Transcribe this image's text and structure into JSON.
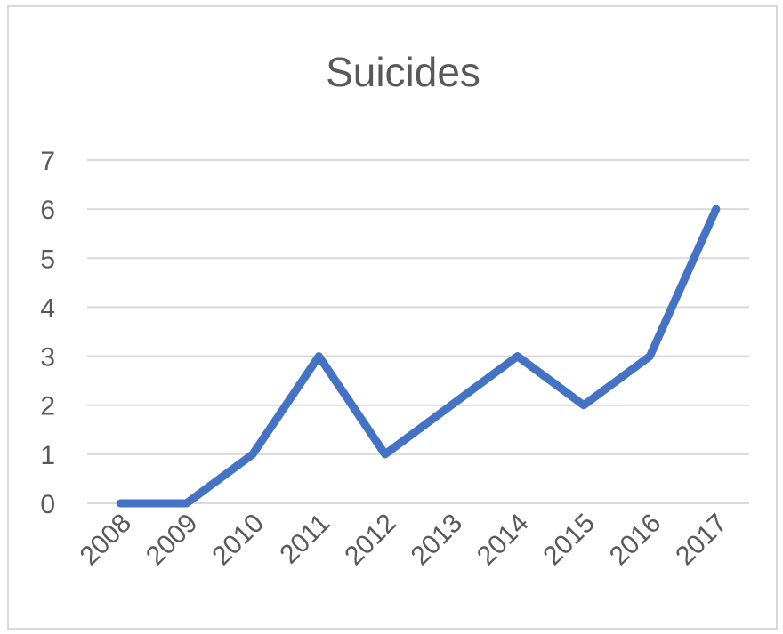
{
  "chart_data": {
    "type": "line",
    "title": "Suicides",
    "categories": [
      "2008",
      "2009",
      "2010",
      "2011",
      "2012",
      "2013",
      "2014",
      "2015",
      "2016",
      "2017"
    ],
    "series": [
      {
        "values": [
          0,
          0,
          1,
          3,
          1,
          2,
          3,
          2,
          3,
          6
        ]
      }
    ],
    "ylim": [
      0,
      7
    ],
    "yticks": [
      0,
      1,
      2,
      3,
      4,
      5,
      6,
      7
    ],
    "grid": true,
    "legend": "none",
    "colors": {
      "line": "#4472c4",
      "grid": "#d9d9d9",
      "text": "#595959"
    }
  }
}
